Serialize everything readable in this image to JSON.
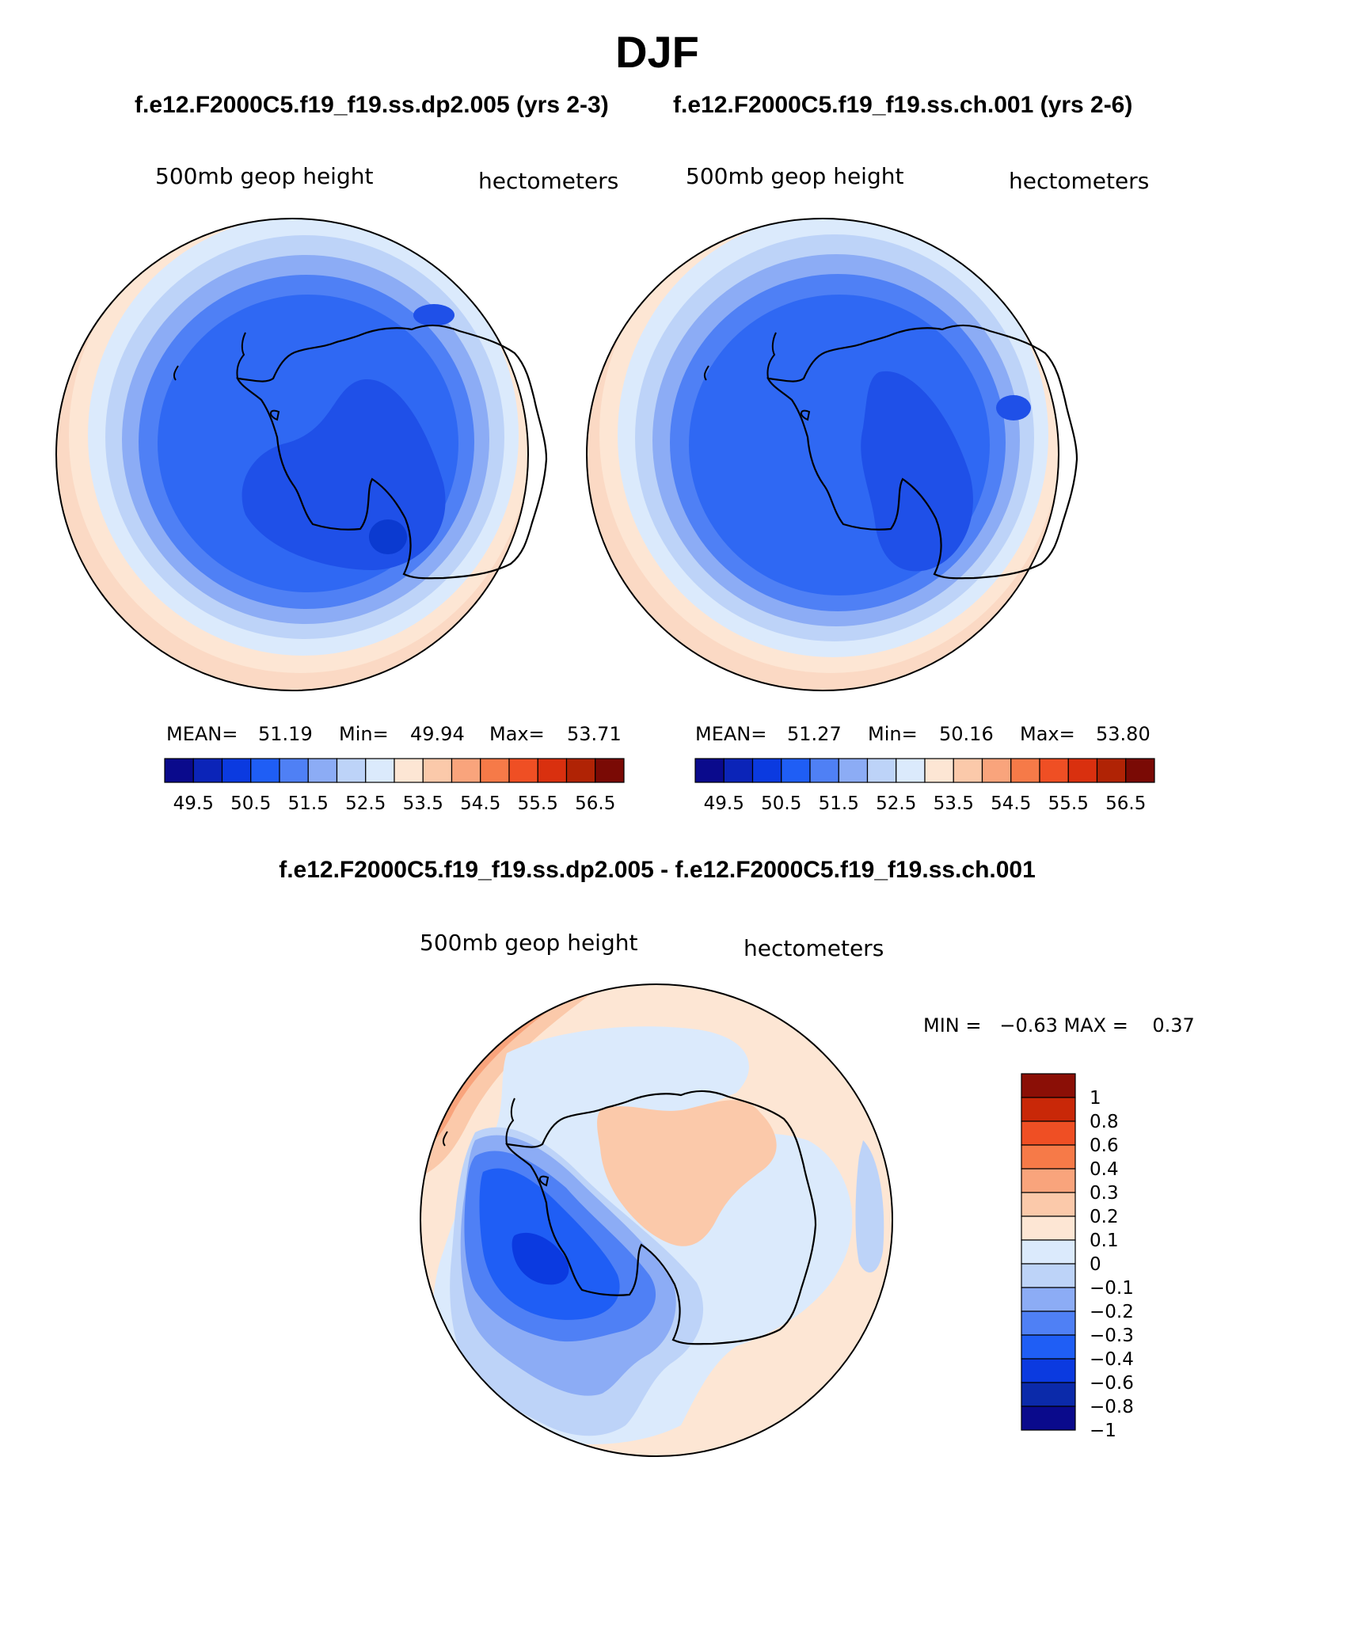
{
  "figure": {
    "season": "DJF",
    "left_case": "f.e12.F2000C5.f19_f19.ss.dp2.005 (yrs 2-3)",
    "right_case": "f.e12.F2000C5.f19_f19.ss.ch.001 (yrs 2-6)",
    "diff_title": "f.e12.F2000C5.f19_f19.ss.dp2.005 - f.e12.F2000C5.f19_f19.ss.ch.001"
  },
  "colors": {
    "abs_scale": [
      "#0a0a8c",
      "#0b24b8",
      "#0b3ae0",
      "#1f5ef5",
      "#4f80f5",
      "#8cacf5",
      "#bdd3f8",
      "#dbeafc",
      "#fde6d4",
      "#fbc9aa",
      "#f9a47c",
      "#f67a48",
      "#ef4f24",
      "#d9300f",
      "#b02305",
      "#7a0a05"
    ],
    "diff_scale": [
      "#0a0a8c",
      "#0b2aaa",
      "#0b3ae0",
      "#1f5ef5",
      "#4f80f5",
      "#8cacf5",
      "#bdd3f8",
      "#dbeafc",
      "#fde6d4",
      "#fbc9aa",
      "#f9a47c",
      "#f67a48",
      "#ef4f24",
      "#c92808",
      "#8b0f06"
    ]
  },
  "chart_data": [
    {
      "type": "heatmap",
      "name": "left-map",
      "variable": "500mb geop height",
      "units": "hectometers",
      "stats": {
        "mean_label": "MEAN=",
        "mean": "51.19",
        "min_label": "Min=",
        "min": "49.94",
        "max_label": "Max=",
        "max": "53.71"
      },
      "colorbar_labels": [
        "49.5",
        "50.5",
        "51.5",
        "52.5",
        "53.5",
        "54.5",
        "55.5",
        "56.5"
      ],
      "contour_levels": [
        49.5,
        50,
        50.5,
        51,
        51.5,
        52,
        52.5,
        53,
        53.5,
        54,
        54.5,
        55,
        55.5,
        56,
        56.5
      ]
    },
    {
      "type": "heatmap",
      "name": "right-map",
      "variable": "500mb geop height",
      "units": "hectometers",
      "stats": {
        "mean_label": "MEAN=",
        "mean": "51.27",
        "min_label": "Min=",
        "min": "50.16",
        "max_label": "Max=",
        "max": "53.80"
      },
      "colorbar_labels": [
        "49.5",
        "50.5",
        "51.5",
        "52.5",
        "53.5",
        "54.5",
        "55.5",
        "56.5"
      ],
      "contour_levels": [
        49.5,
        50,
        50.5,
        51,
        51.5,
        52,
        52.5,
        53,
        53.5,
        54,
        54.5,
        55,
        55.5,
        56,
        56.5
      ]
    },
    {
      "type": "heatmap",
      "name": "difference-map",
      "variable": "500mb geop height",
      "units": "hectometers",
      "stats_text": "MIN =   −0.63 MAX =    0.37",
      "colorbar_labels": [
        "1",
        "0.8",
        "0.6",
        "0.4",
        "0.3",
        "0.2",
        "0.1",
        "0",
        "−0.1",
        "−0.2",
        "−0.3",
        "−0.4",
        "−0.6",
        "−0.8",
        "−1"
      ]
    }
  ]
}
